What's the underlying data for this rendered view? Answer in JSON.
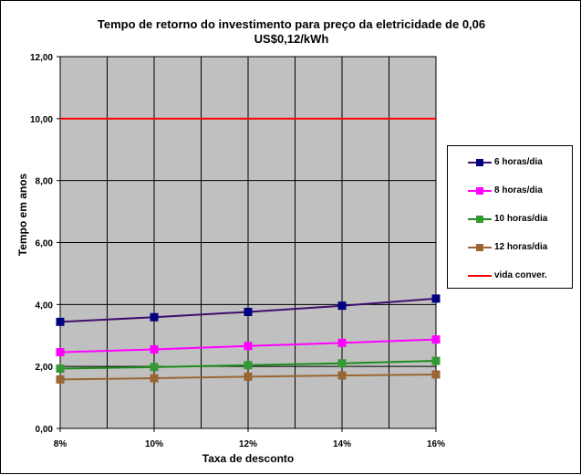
{
  "chart_data": {
    "type": "line",
    "title_line1": "Tempo de retorno do investimento para preço da eletricidade de 0,06",
    "title_line2": "US$0,12/kWh",
    "xlabel": "Taxa de desconto",
    "ylabel": "Tempo em anos",
    "categories": [
      "8%",
      "10%",
      "12%",
      "14%",
      "16%"
    ],
    "y_ticks": [
      "0,00",
      "2,00",
      "4,00",
      "6,00",
      "8,00",
      "10,00",
      "12,00"
    ],
    "ylim": [
      0,
      12
    ],
    "grid": true,
    "legend_position": "right",
    "plot_background": "#c0c0c0",
    "series": [
      {
        "name": "6 horas/dia",
        "color": "#3e0d6e",
        "marker_color": "#000080",
        "marker": "square",
        "values": [
          3.44,
          3.59,
          3.76,
          3.96,
          4.19
        ]
      },
      {
        "name": "8 horas/dia",
        "color": "#ff00ff",
        "marker_color": "#ff00ff",
        "marker": "square",
        "values": [
          2.46,
          2.55,
          2.66,
          2.76,
          2.87
        ]
      },
      {
        "name": "10 horas/dia",
        "color": "#1e8c1e",
        "marker_color": "#339933",
        "marker": "square",
        "values": [
          1.93,
          1.98,
          2.04,
          2.1,
          2.18
        ]
      },
      {
        "name": "12 horas/dia",
        "color": "#996633",
        "marker_color": "#996633",
        "marker": "square",
        "values": [
          1.58,
          1.62,
          1.67,
          1.71,
          1.74
        ]
      },
      {
        "name": "vida conver.",
        "color": "#ff0000",
        "marker": "none",
        "values": [
          10,
          10,
          10,
          10,
          10
        ]
      }
    ]
  }
}
